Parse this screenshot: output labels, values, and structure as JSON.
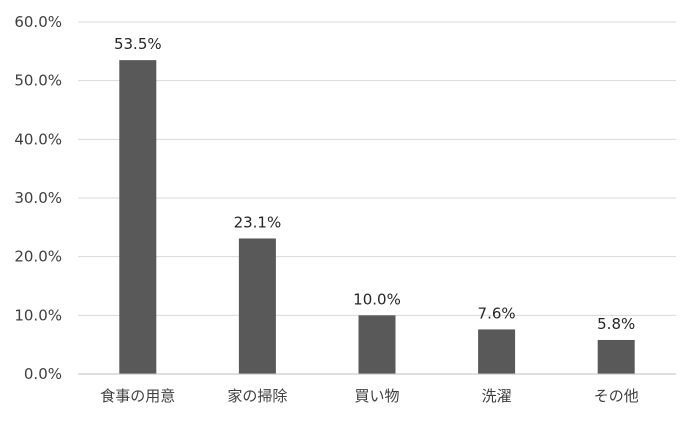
{
  "chart_data": {
    "type": "bar",
    "categories": [
      "食事の用意",
      "家の掃除",
      "買い物",
      "洗濯",
      "その他"
    ],
    "values": [
      53.5,
      23.1,
      10.0,
      7.6,
      5.8
    ],
    "data_labels": [
      "53.5%",
      "23.1%",
      "10.0%",
      "7.6%",
      "5.8%"
    ],
    "yticks": [
      0,
      10,
      20,
      30,
      40,
      50,
      60
    ],
    "ytick_labels": [
      "0.0%",
      "10.0%",
      "20.0%",
      "30.0%",
      "40.0%",
      "50.0%",
      "60.0%"
    ],
    "ylim": [
      0,
      60
    ],
    "grid": true,
    "legend": "none",
    "bar_color": "#595959"
  }
}
